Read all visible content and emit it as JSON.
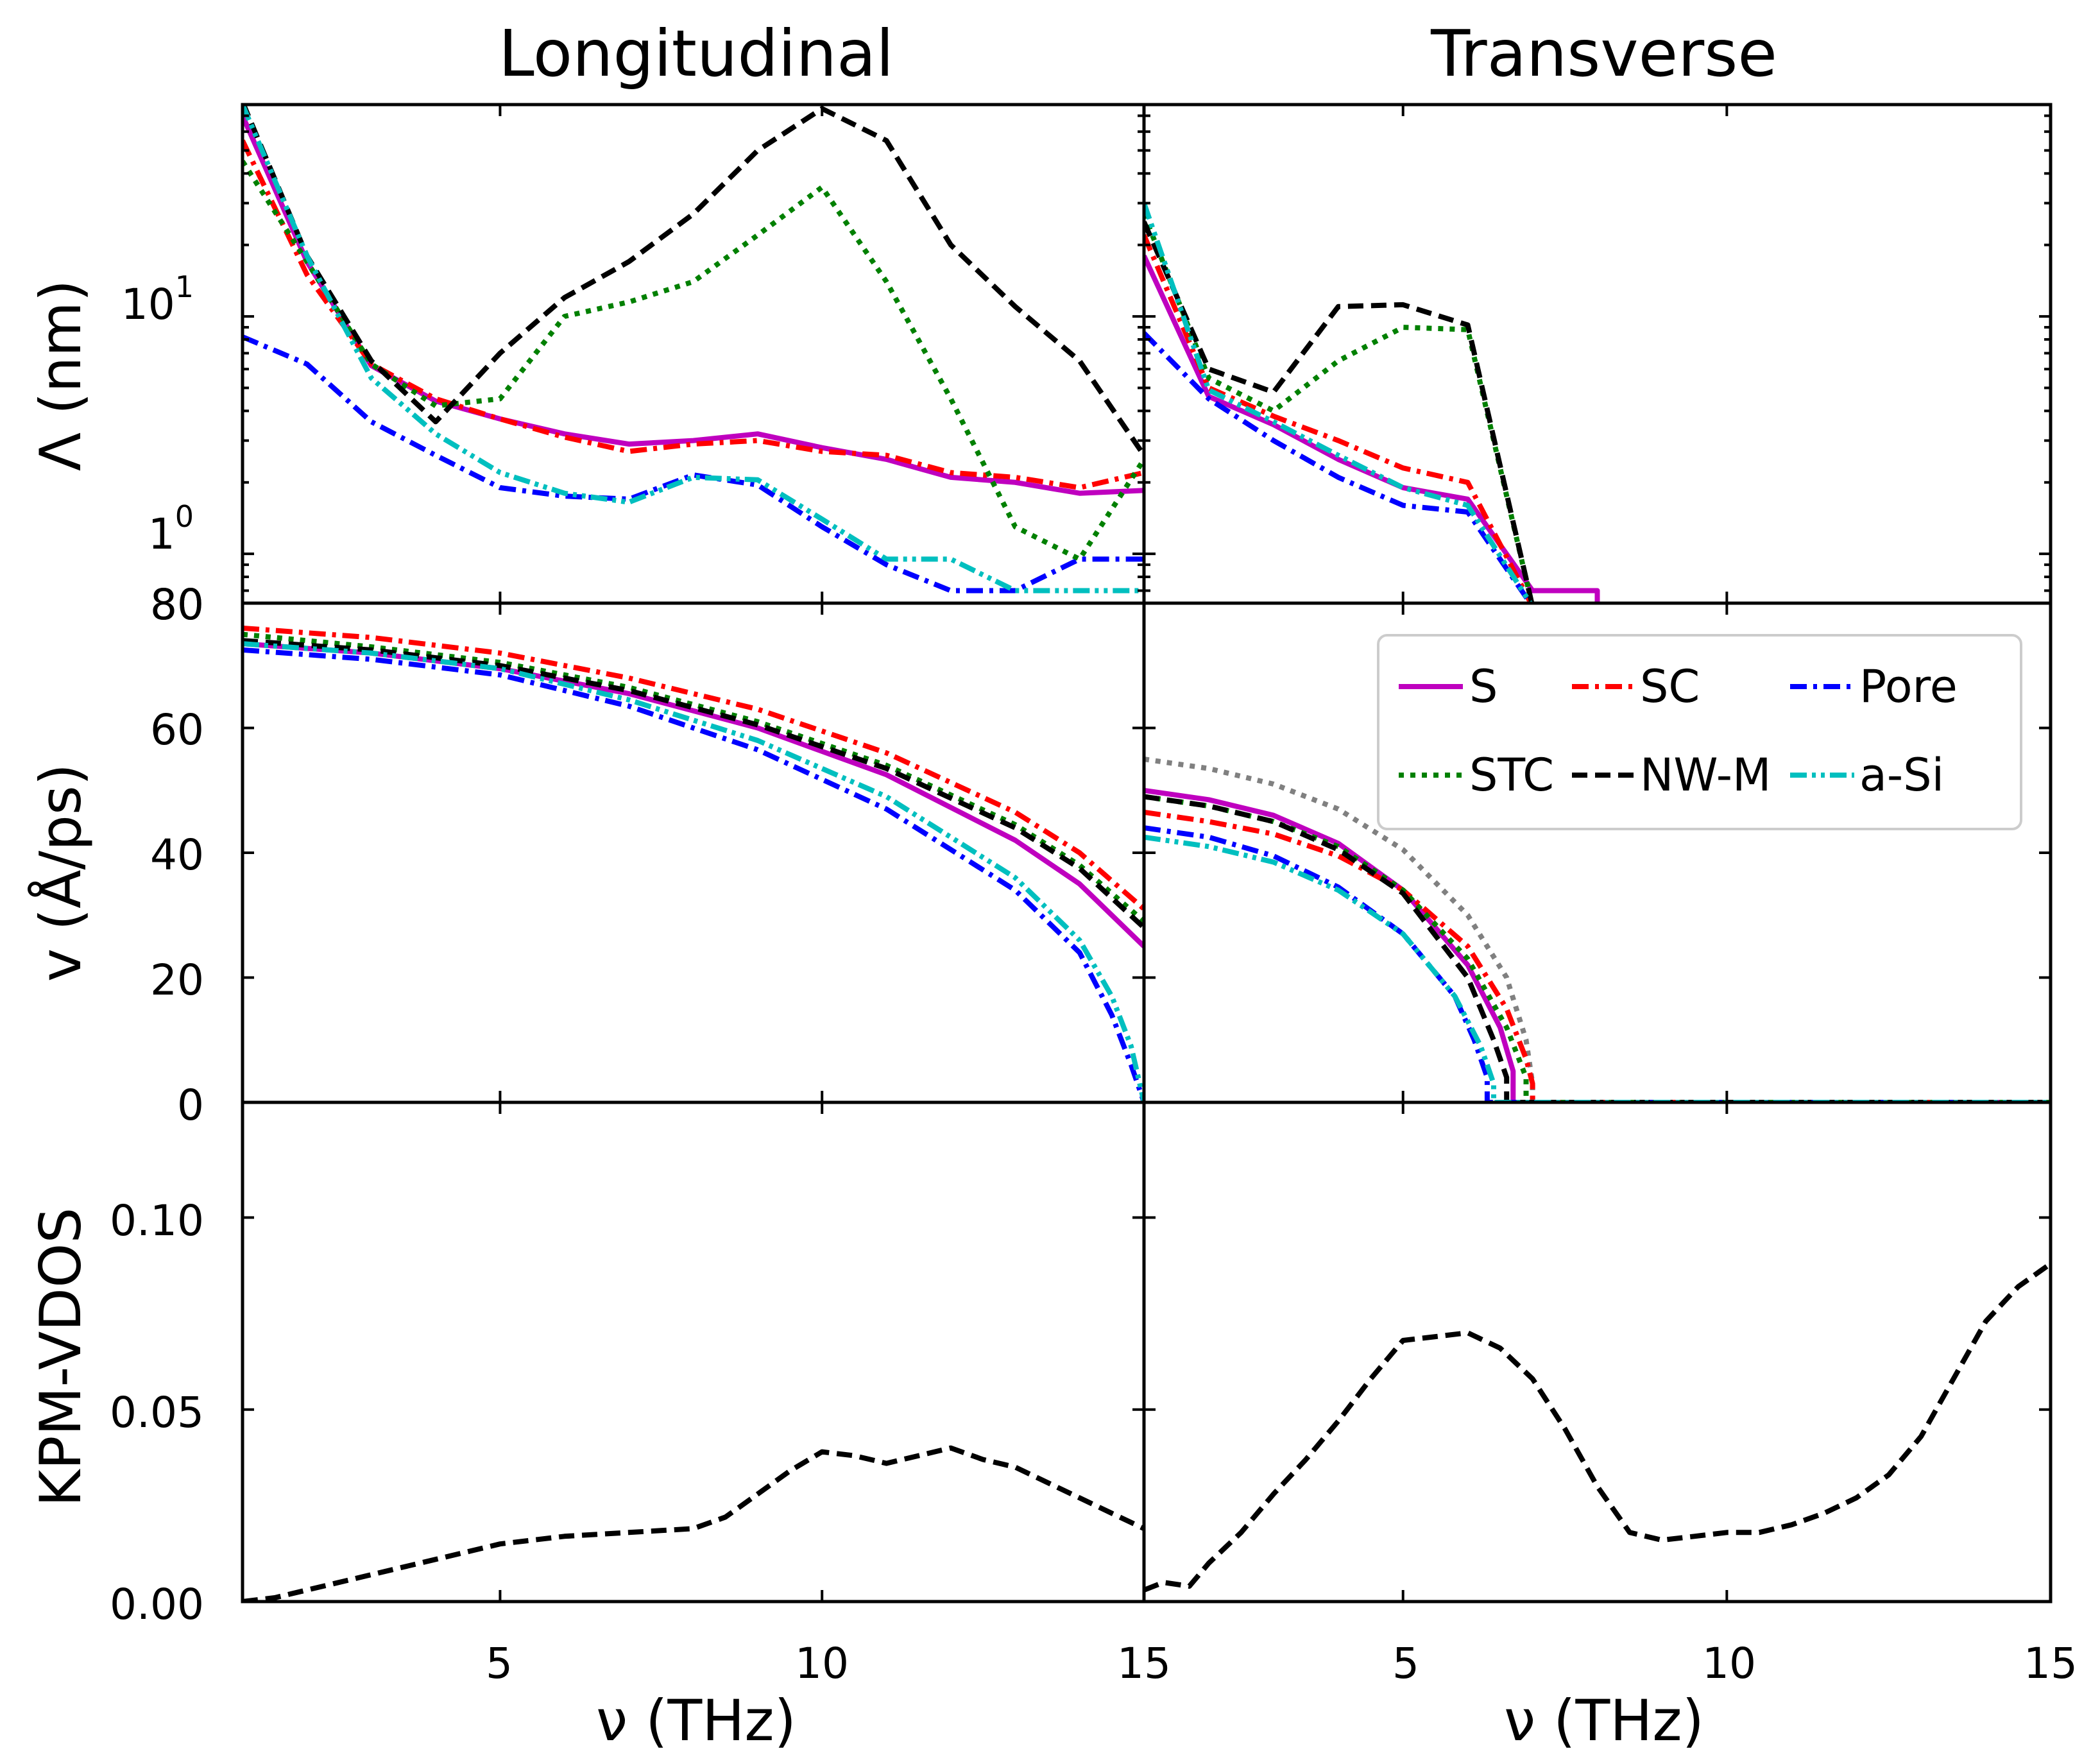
{
  "figure": {
    "titles": [
      "Longitudinal",
      "Transverse"
    ],
    "xlabel": "ν (THz)",
    "ylabels": [
      "Λ (nm)",
      "v (Å/ps)",
      "KPM-VDOS"
    ]
  },
  "legend": {
    "entries": [
      {
        "label": "S",
        "color": "#bf00bf",
        "dash": "solid"
      },
      {
        "label": "SC",
        "color": "#ff0000",
        "dash": "dashdot"
      },
      {
        "label": "Pore",
        "color": "#0000ff",
        "dash": "dashdot"
      },
      {
        "label": "STC",
        "color": "#008000",
        "dash": "dotted"
      },
      {
        "label": "NW-M",
        "color": "#000000",
        "dash": "dashed"
      },
      {
        "label": "a-Si",
        "color": "#00bfbf",
        "dash": "dashdotdot"
      }
    ]
  },
  "ticks": {
    "x": [
      "5",
      "10",
      "15"
    ],
    "x_left_extra": "15",
    "lambda_y": [
      "10",
      "1",
      "80"
    ],
    "lambda_exp": [
      "1",
      "0"
    ],
    "v_y": [
      "80",
      "60",
      "40",
      "20",
      "0"
    ],
    "vdos_y": [
      "0.10",
      "0.05",
      "0.00"
    ]
  },
  "chart_data": [
    {
      "panel": "lambda-longitudinal",
      "type": "line",
      "title": "Longitudinal",
      "xlabel": "",
      "ylabel": "Λ (nm)",
      "xlim": [
        1,
        15
      ],
      "ylim": [
        0.62,
        78
      ],
      "yscale": "log",
      "series": [
        {
          "name": "S",
          "x": [
            1,
            2,
            3,
            4,
            5,
            6,
            7,
            8,
            9,
            10,
            11,
            12,
            13,
            14,
            15
          ],
          "y": [
            70,
            17,
            6.2,
            4.4,
            3.7,
            3.2,
            2.9,
            3.0,
            3.2,
            2.8,
            2.5,
            2.1,
            2.0,
            1.8,
            1.85
          ]
        },
        {
          "name": "SC",
          "x": [
            1,
            2,
            3,
            4,
            5,
            6,
            7,
            8,
            9,
            10,
            11,
            12,
            13,
            14,
            15
          ],
          "y": [
            55,
            15,
            6.3,
            4.5,
            3.7,
            3.1,
            2.7,
            2.9,
            3.0,
            2.7,
            2.6,
            2.2,
            2.1,
            1.9,
            2.2
          ]
        },
        {
          "name": "Pore",
          "x": [
            1,
            2,
            3,
            4,
            5,
            6,
            7,
            8,
            9,
            10,
            11,
            12,
            13,
            14,
            15
          ],
          "y": [
            8.2,
            6.3,
            3.6,
            2.6,
            1.9,
            1.75,
            1.7,
            2.15,
            1.95,
            1.3,
            0.9,
            0.7,
            0.7,
            0.95,
            0.95
          ]
        },
        {
          "name": "STC",
          "x": [
            1,
            2,
            3,
            4,
            5,
            6,
            7,
            8,
            9,
            10,
            11,
            12,
            13,
            14,
            15
          ],
          "y": [
            45,
            17,
            6.3,
            4.2,
            4.5,
            10,
            11.5,
            14,
            22,
            35,
            14,
            4.5,
            1.3,
            0.95,
            2.5
          ]
        },
        {
          "name": "NW-M",
          "x": [
            1,
            2,
            3,
            4,
            5,
            6,
            7,
            8,
            9,
            10,
            11,
            12,
            13,
            14,
            15
          ],
          "y": [
            80,
            18,
            6.5,
            3.6,
            7,
            12,
            17,
            27,
            50,
            75,
            55,
            20,
            11,
            6.5,
            2.6
          ]
        },
        {
          "name": "a-Si",
          "x": [
            1,
            2,
            3,
            4,
            5,
            6,
            7,
            8,
            9,
            10,
            11,
            12,
            13,
            14,
            15
          ],
          "y": [
            78,
            18,
            5.5,
            3.2,
            2.2,
            1.8,
            1.65,
            2.1,
            2.05,
            1.4,
            0.95,
            0.95,
            0.7,
            0.7,
            0.7
          ]
        }
      ]
    },
    {
      "panel": "lambda-transverse",
      "type": "line",
      "title": "Transverse",
      "xlabel": "",
      "ylabel": "",
      "xlim": [
        1,
        15
      ],
      "ylim": [
        0.62,
        78
      ],
      "yscale": "log",
      "series": [
        {
          "name": "S",
          "x": [
            1,
            2,
            3,
            4,
            5,
            6,
            7,
            7.2,
            8,
            8
          ],
          "y": [
            18,
            4.6,
            3.5,
            2.5,
            1.9,
            1.7,
            0.7,
            0.7,
            0.7,
            0.5
          ]
        },
        {
          "name": "SC",
          "x": [
            1,
            2,
            3,
            4,
            5,
            6,
            7
          ],
          "y": [
            22,
            5.0,
            3.8,
            3.0,
            2.3,
            2.0,
            0.6
          ]
        },
        {
          "name": "Pore",
          "x": [
            1,
            2,
            3,
            4,
            5,
            6,
            7
          ],
          "y": [
            8.5,
            4.5,
            3.0,
            2.1,
            1.6,
            1.5,
            0.6
          ]
        },
        {
          "name": "STC",
          "x": [
            1,
            2,
            3,
            4,
            5,
            6,
            7
          ],
          "y": [
            27,
            5.5,
            4.0,
            6.5,
            9.0,
            8.8,
            0.6
          ]
        },
        {
          "name": "NW-M",
          "x": [
            1,
            2,
            3,
            4,
            5,
            6,
            7
          ],
          "y": [
            25,
            6.0,
            4.8,
            11,
            11.2,
            9.2,
            0.6
          ]
        },
        {
          "name": "a-Si",
          "x": [
            1,
            2,
            3,
            4,
            5,
            6,
            7
          ],
          "y": [
            30,
            4.9,
            3.6,
            2.6,
            1.9,
            1.6,
            0.6
          ]
        }
      ]
    },
    {
      "panel": "velocity-longitudinal",
      "type": "line",
      "title": "",
      "xlabel": "",
      "ylabel": "v (Å/ps)",
      "xlim": [
        1,
        15
      ],
      "ylim": [
        0,
        80
      ],
      "series": [
        {
          "name": "S",
          "x": [
            1,
            3,
            5,
            7,
            9,
            11,
            13,
            14,
            15
          ],
          "y": [
            73.5,
            72,
            69.5,
            65.5,
            60,
            52.5,
            42,
            35,
            25
          ]
        },
        {
          "name": "SC",
          "x": [
            1,
            3,
            5,
            7,
            9,
            11,
            13,
            14,
            15
          ],
          "y": [
            76,
            74.5,
            72,
            68,
            63,
            56,
            46.5,
            40,
            31
          ]
        },
        {
          "name": "Pore",
          "x": [
            1,
            3,
            5,
            7,
            9,
            11,
            13,
            14,
            14.5,
            14.8,
            15
          ],
          "y": [
            72.5,
            71,
            68.5,
            63.5,
            56.5,
            47,
            34,
            24,
            14,
            6,
            0
          ]
        },
        {
          "name": "STC",
          "x": [
            1,
            3,
            5,
            7,
            9,
            11,
            13,
            14,
            15
          ],
          "y": [
            75,
            73,
            70.5,
            66.5,
            61,
            54,
            44.5,
            38,
            29
          ]
        },
        {
          "name": "NW-M",
          "x": [
            1,
            3,
            5,
            7,
            9,
            11,
            13,
            14,
            15
          ],
          "y": [
            74,
            72.5,
            70,
            66,
            60.5,
            53.5,
            44,
            37.5,
            28
          ]
        },
        {
          "name": "a-Si",
          "x": [
            1,
            3,
            5,
            7,
            9,
            11,
            13,
            14,
            14.5,
            14.8,
            15
          ],
          "y": [
            73.5,
            72,
            69.5,
            64.5,
            58,
            49,
            36,
            26,
            17,
            9,
            0
          ]
        }
      ]
    },
    {
      "panel": "velocity-transverse",
      "type": "line",
      "title": "",
      "xlabel": "",
      "ylabel": "",
      "xlim": [
        1,
        15
      ],
      "ylim": [
        0,
        80
      ],
      "series": [
        {
          "name": "S",
          "x": [
            1,
            2,
            3,
            4,
            5,
            6,
            6.5,
            6.7,
            6.7,
            15
          ],
          "y": [
            50,
            48.5,
            46,
            41.5,
            34,
            22,
            12,
            5,
            0,
            0
          ]
        },
        {
          "name": "SC",
          "x": [
            1,
            2,
            3,
            4,
            5,
            6,
            6.6,
            6.9,
            7,
            7,
            15
          ],
          "y": [
            46.5,
            45,
            43,
            39.5,
            34,
            25,
            15,
            7,
            3,
            0,
            0
          ]
        },
        {
          "name": "Pore",
          "x": [
            1,
            2,
            3,
            4,
            5,
            5.8,
            6.1,
            6.3,
            6.3,
            15
          ],
          "y": [
            44,
            42.5,
            39.5,
            34.5,
            27,
            17,
            10,
            4,
            0,
            0
          ]
        },
        {
          "name": "STC",
          "x": [
            1,
            2,
            3,
            4,
            5,
            6,
            6.6,
            6.9,
            6.9,
            15
          ],
          "y": [
            49,
            47.5,
            45,
            41,
            34,
            23,
            12,
            4,
            0,
            0
          ]
        },
        {
          "name": "NW-M",
          "x": [
            1,
            2,
            3,
            4,
            5,
            6,
            6.4,
            6.6,
            6.6,
            15
          ],
          "y": [
            49,
            47.5,
            45,
            40.5,
            33.5,
            20,
            10,
            4,
            0,
            0
          ]
        },
        {
          "name": "a-Si",
          "x": [
            1,
            2,
            3,
            4,
            5,
            5.8,
            6.2,
            6.4,
            6.4,
            15
          ],
          "y": [
            42.5,
            41,
            38.5,
            34,
            27,
            17,
            9,
            3,
            0,
            0
          ]
        },
        {
          "name": "reference",
          "x": [
            1,
            2,
            3,
            4,
            5,
            6,
            6.6,
            6.9,
            7,
            7,
            15
          ],
          "y": [
            55,
            53.5,
            51,
            47,
            40.5,
            30,
            20,
            10,
            3,
            0,
            0
          ]
        }
      ]
    },
    {
      "panel": "vdos-longitudinal",
      "type": "line",
      "title": "",
      "xlabel": "ν (THz)",
      "ylabel": "KPM-VDOS",
      "xlim": [
        1,
        15
      ],
      "ylim": [
        0,
        0.13
      ],
      "series": [
        {
          "name": "NW-M",
          "x": [
            1,
            1.5,
            2,
            3,
            4,
            5,
            6,
            7,
            8,
            8.5,
            9,
            9.5,
            10,
            10.5,
            11,
            11.5,
            12,
            12.5,
            13,
            13.5,
            14,
            14.5,
            15
          ],
          "y": [
            0.0,
            0.001,
            0.003,
            0.007,
            0.011,
            0.015,
            0.017,
            0.018,
            0.019,
            0.022,
            0.028,
            0.034,
            0.039,
            0.038,
            0.036,
            0.038,
            0.04,
            0.037,
            0.035,
            0.031,
            0.027,
            0.023,
            0.019
          ]
        }
      ]
    },
    {
      "panel": "vdos-transverse",
      "type": "line",
      "title": "",
      "xlabel": "ν (THz)",
      "ylabel": "",
      "xlim": [
        1,
        15
      ],
      "ylim": [
        0,
        0.13
      ],
      "series": [
        {
          "name": "NW-M",
          "x": [
            1,
            1.3,
            1.7,
            2,
            2.5,
            3,
            3.5,
            4,
            4.5,
            5,
            5.5,
            6,
            6.5,
            7,
            7.5,
            8,
            8.5,
            9,
            9.5,
            10,
            10.5,
            11,
            11.5,
            12,
            12.5,
            13,
            13.5,
            14,
            14.5,
            15
          ],
          "y": [
            0.003,
            0.005,
            0.004,
            0.01,
            0.018,
            0.028,
            0.037,
            0.047,
            0.058,
            0.068,
            0.069,
            0.07,
            0.066,
            0.058,
            0.045,
            0.03,
            0.018,
            0.016,
            0.017,
            0.018,
            0.018,
            0.02,
            0.023,
            0.027,
            0.033,
            0.043,
            0.058,
            0.073,
            0.082,
            0.088
          ]
        }
      ]
    }
  ]
}
